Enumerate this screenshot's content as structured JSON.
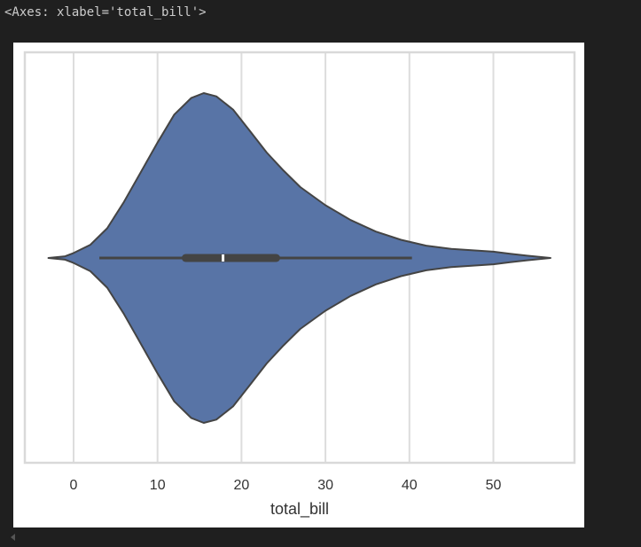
{
  "output": {
    "repr_text": "<Axes: xlabel='total_bill'>"
  },
  "chart_data": {
    "type": "violin",
    "orientation": "horizontal",
    "xlabel": "total_bill",
    "ylabel": "",
    "xlim": [
      -6,
      60
    ],
    "x_ticks": [
      0,
      10,
      20,
      30,
      40,
      50
    ],
    "x_tick_labels": [
      "0",
      "10",
      "20",
      "30",
      "40",
      "50"
    ],
    "grid": "vertical",
    "series": [
      {
        "violin_extent": [
          -3.0,
          56.8
        ],
        "whisker": [
          3.07,
          40.3
        ],
        "box_q1": 13.35,
        "box_q3": 24.13,
        "median": 17.8,
        "density_profile": [
          [
            -3.0,
            0.0
          ],
          [
            -1.0,
            0.01
          ],
          [
            0.0,
            0.03
          ],
          [
            2.0,
            0.08
          ],
          [
            4.0,
            0.18
          ],
          [
            6.0,
            0.34
          ],
          [
            8.0,
            0.52
          ],
          [
            10.0,
            0.7
          ],
          [
            12.0,
            0.87
          ],
          [
            14.0,
            0.97
          ],
          [
            15.5,
            1.0
          ],
          [
            17.0,
            0.98
          ],
          [
            19.0,
            0.9
          ],
          [
            21.0,
            0.77
          ],
          [
            23.0,
            0.64
          ],
          [
            25.0,
            0.53
          ],
          [
            27.0,
            0.43
          ],
          [
            30.0,
            0.32
          ],
          [
            33.0,
            0.23
          ],
          [
            36.0,
            0.16
          ],
          [
            39.0,
            0.11
          ],
          [
            42.0,
            0.075
          ],
          [
            45.0,
            0.055
          ],
          [
            48.0,
            0.045
          ],
          [
            50.0,
            0.038
          ],
          [
            52.0,
            0.026
          ],
          [
            54.0,
            0.014
          ],
          [
            56.0,
            0.004
          ],
          [
            56.8,
            0.0
          ]
        ]
      }
    ],
    "colors": {
      "fill": "#5874a6",
      "outline": "#444444",
      "box": "#444444",
      "median": "#ffffff",
      "grid": "#dddddd",
      "frame": "#d9d9d9",
      "tick_text": "#333333"
    }
  }
}
